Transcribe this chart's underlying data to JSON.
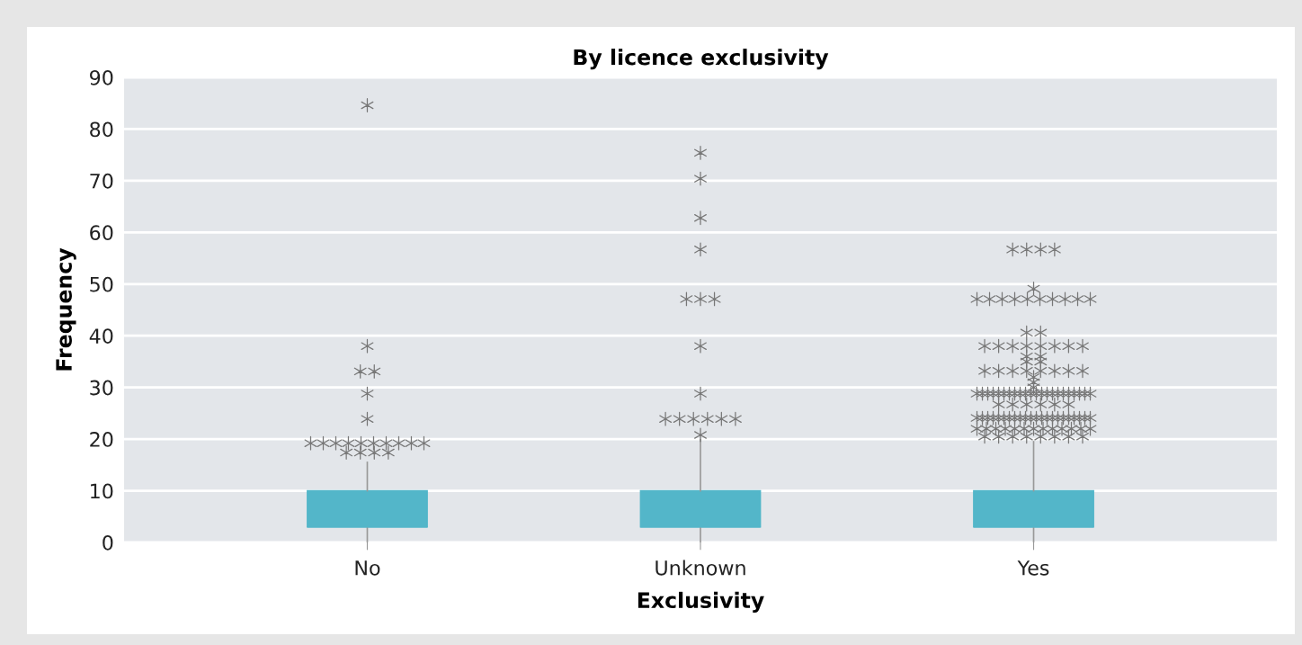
{
  "chart_data": {
    "type": "box",
    "title": "By licence exclusivity",
    "xlabel": "Exclusivity",
    "ylabel": "Frequency",
    "categories": [
      "No",
      "Unknown",
      "Yes"
    ],
    "color": "#53b6c9",
    "marker": "star",
    "grid": "y",
    "ylim": [
      0,
      90
    ],
    "yticks": [
      0,
      10,
      20,
      30,
      40,
      50,
      60,
      70,
      80,
      90
    ],
    "boxes": [
      {
        "low": 0,
        "q1": 3,
        "median": 3,
        "q3": 10,
        "high": 15.5,
        "outliers": [
          84.6,
          38,
          33.1,
          33.1,
          28.8,
          23.9,
          19.2,
          19.2,
          19.2,
          19.2,
          19.2,
          19.2,
          19.2,
          19.2,
          19.2,
          19.2,
          17.4,
          17.4,
          17.4,
          17.4
        ]
      },
      {
        "low": 0,
        "q1": 3,
        "median": 3,
        "q3": 10,
        "high": 19.9,
        "outliers": [
          75.4,
          70.4,
          62.8,
          56.7,
          47.1,
          47.1,
          47.1,
          38,
          28.8,
          23.9,
          23.9,
          23.9,
          23.9,
          23.9,
          23.9,
          20.8
        ]
      },
      {
        "low": 0,
        "q1": 3,
        "median": 3,
        "q3": 10,
        "high": 19.5,
        "outliers": [
          56.7,
          56.7,
          56.7,
          56.7,
          49.1,
          47.1,
          47.1,
          47.1,
          47.1,
          47.1,
          47.1,
          47.1,
          47.1,
          47.1,
          47.1,
          40.6,
          40.6,
          38,
          38,
          38,
          38,
          38,
          38,
          38,
          38,
          36,
          36,
          35,
          35,
          33.2,
          33.2,
          33.2,
          33.2,
          33.2,
          33.2,
          33.2,
          33.2,
          32,
          31,
          30,
          28.8,
          28.8,
          28.8,
          28.8,
          28.8,
          28.8,
          28.8,
          28.8,
          28.8,
          28.8,
          28.8,
          28.8,
          28.8,
          28.8,
          28.8,
          28.8,
          28.8,
          28.8,
          28.8,
          28.8,
          28.8,
          28.8,
          26.7,
          26.7,
          26.7,
          26.7,
          26.7,
          26.7,
          24.1,
          24.1,
          24.1,
          24.1,
          24.1,
          24.1,
          24.1,
          24.1,
          24.1,
          24.1,
          24.1,
          24.1,
          24.1,
          24.1,
          24.1,
          24.1,
          24.1,
          24.1,
          24.1,
          24.1,
          24.1,
          24.1,
          22,
          22,
          22,
          22,
          22,
          22,
          22,
          22,
          22,
          22,
          22,
          22,
          22,
          20.5,
          20.5,
          20.5,
          20.5,
          20.5,
          20.5,
          20.5,
          20.5
        ]
      }
    ]
  }
}
